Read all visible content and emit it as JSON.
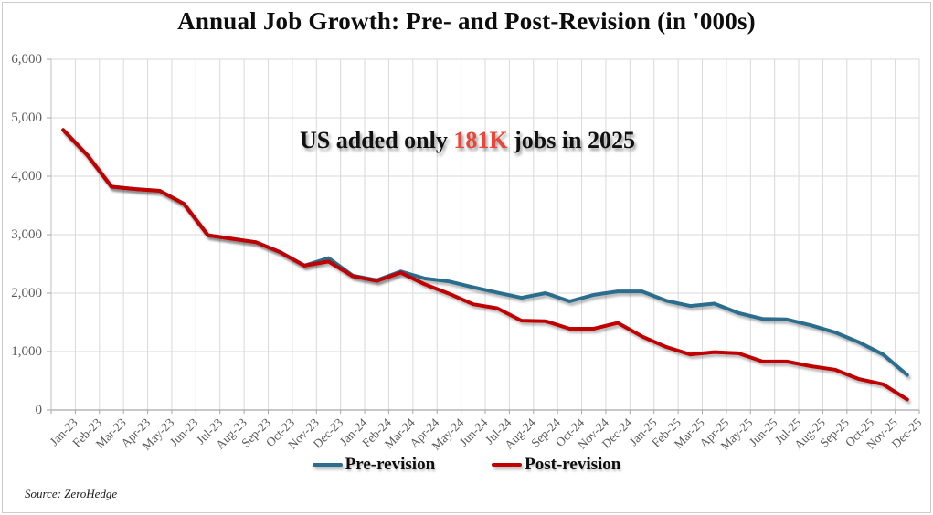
{
  "title": "Annual Job Growth: Pre- and Post-Revision (in '000s)",
  "annotation": {
    "prefix": "US added only ",
    "highlight": "181K",
    "suffix": " jobs in 2025",
    "highlight_color": "#e8463a"
  },
  "source": {
    "label": "Source: ZeroHedge"
  },
  "chart_data": {
    "type": "line",
    "title": "Annual Job Growth: Pre- and Post-Revision (in '000s)",
    "xlabel": "",
    "ylabel": "",
    "ylim": [
      0,
      6000
    ],
    "ytick_values": [
      0,
      1000,
      2000,
      3000,
      4000,
      5000,
      6000
    ],
    "ytick_labels": [
      "0",
      "1,000",
      "2,000",
      "3,000",
      "4,000",
      "5,000",
      "6,000"
    ],
    "grid": true,
    "legend_position": "bottom",
    "x": [
      "Jan-23",
      "Feb-23",
      "Mar-23",
      "Apr-23",
      "May-23",
      "Jun-23",
      "Jul-23",
      "Aug-23",
      "Sep-23",
      "Oct-23",
      "Nov-23",
      "Dec-23",
      "Jan-24",
      "Feb-24",
      "Mar-24",
      "Apr-24",
      "May-24",
      "Jun-24",
      "Jul-24",
      "Aug-24",
      "Sep-24",
      "Oct-24",
      "Nov-24",
      "Dec-24",
      "Jan-25",
      "Feb-25",
      "Mar-25",
      "Apr-25",
      "May-25",
      "Jun-25",
      "Jul-25",
      "Aug-25",
      "Sep-25",
      "Oct-25",
      "Nov-25",
      "Dec-25"
    ],
    "series": [
      {
        "name": "Pre-revision",
        "color": "#2c6d8d",
        "values": [
          4790,
          4360,
          3820,
          3780,
          3750,
          3530,
          2990,
          2930,
          2870,
          2700,
          2470,
          2600,
          2300,
          2220,
          2370,
          2250,
          2200,
          2100,
          2010,
          1920,
          2000,
          1860,
          1970,
          2030,
          2030,
          1870,
          1780,
          1820,
          1660,
          1560,
          1550,
          1450,
          1330,
          1160,
          950,
          600
        ]
      },
      {
        "name": "Post-revision",
        "color": "#c00000",
        "values": [
          4790,
          4360,
          3820,
          3780,
          3750,
          3530,
          2990,
          2930,
          2870,
          2700,
          2470,
          2540,
          2290,
          2210,
          2350,
          2150,
          1990,
          1810,
          1740,
          1530,
          1520,
          1390,
          1390,
          1490,
          1260,
          1080,
          950,
          990,
          970,
          830,
          830,
          750,
          690,
          530,
          440,
          181
        ]
      }
    ]
  },
  "colors": {
    "gridline": "#d9d9d9",
    "axis": "#a6a6a6",
    "tick_label": "#595959",
    "background": "#ffffff"
  }
}
